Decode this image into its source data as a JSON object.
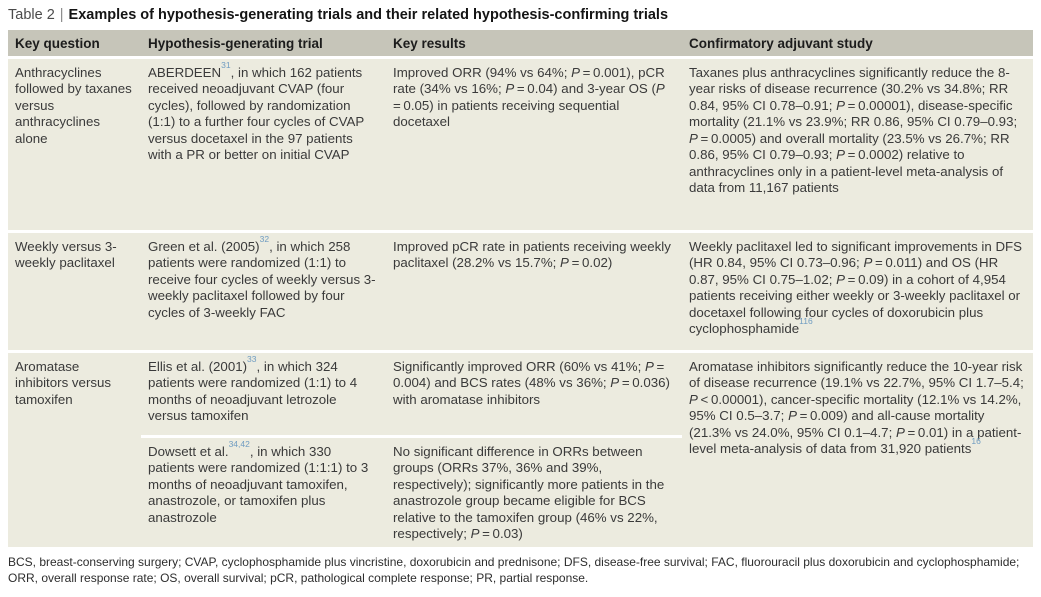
{
  "title": {
    "label": "Table 2",
    "separator": "|",
    "text": "Examples of hypothesis-generating trials and their related hypothesis-confirming trials"
  },
  "table": {
    "headers": [
      "Key question",
      "Hypothesis-generating trial",
      "Key results",
      "Confirmatory adjuvant study"
    ],
    "rows": [
      {
        "key_question": "Anthracyclines followed by taxanes versus anthracyclines alone",
        "trial": "ABERDEEN~31~, in which 162 patients received neoadjuvant CVAP (four cycles), followed by randomization (1:1) to a further four cycles of CVAP versus docetaxel in the 97 patients with a PR or better on initial CVAP",
        "key_results": "Improved ORR (94% vs 64%; *P* = 0.001), pCR rate (34% vs 16%; *P* = 0.04) and 3-year OS (*P* = 0.05) in patients receiving sequential docetaxel",
        "confirmatory": "Taxanes plus anthracyclines significantly reduce the 8-year risks of disease recurrence (30.2% vs 34.8%; RR 0.84, 95% CI 0.78–0.91; *P* = 0.00001), disease-specific mortality (21.1% vs 23.9%; RR 0.86, 95% CI 0.79–0.93; *P* = 0.0005) and overall mortality (23.5% vs 26.7%; RR 0.86, 95% CI 0.79–0.93; *P* = 0.0002) relative to anthracyclines only in a patient-level meta-analysis of data from 11,167 patients"
      },
      {
        "key_question": "Weekly versus 3-weekly paclitaxel",
        "trial": "Green et al. (2005)~32~, in which 258 patients were randomized (1:1) to receive four cycles of weekly versus 3-weekly paclitaxel followed by four cycles of 3-weekly FAC",
        "key_results": "Improved pCR rate in patients receiving weekly paclitaxel (28.2% vs 15.7%; *P* = 0.02)",
        "confirmatory": "Weekly paclitaxel led to significant improvements in DFS (HR 0.84, 95% CI 0.73–0.96; *P* = 0.011) and OS (HR 0.87, 95% CI 0.75–1.02; *P* = 0.09) in a cohort of 4,954 patients receiving either weekly or 3-weekly paclitaxel or docetaxel following four cycles of doxorubicin plus cyclophosphamide~116~"
      },
      {
        "key_question": "Aromatase inhibitors versus tamoxifen",
        "sub": [
          {
            "trial": "Ellis et al. (2001)~33~, in which 324 patients were randomized (1:1) to 4 months of neoadjuvant letrozole versus tamoxifen",
            "key_results": "Significantly improved ORR (60% vs 41%; *P* = 0.004) and BCS rates (48% vs 36%; *P* = 0.036) with aromatase inhibitors"
          },
          {
            "trial": "Dowsett et al.~34,42~, in which 330 patients were randomized (1:1:1) to 3 months of neoadjuvant tamoxifen, anastrozole, or tamoxifen plus anastrozole",
            "key_results": "No significant difference in ORRs between groups (ORRs 37%, 36% and 39%, respectively); significantly more patients in the anastrozole group became eligible for BCS relative to the tamoxifen group (46% vs 22%, respectively; *P* = 0.03)"
          }
        ],
        "confirmatory": "Aromatase inhibitors significantly reduce the 10-year risk of disease recurrence (19.1% vs 22.7%, 95% CI 1.7–5.4; *P* < 0.00001), cancer-specific mortality (12.1% vs 14.2%, 95% CI 0.5–3.7; *P* = 0.009) and all-cause mortality (21.3% vs 24.0%, 95% CI 0.1–4.7; *P* = 0.01) in a patient-level meta-analysis of data from 31,920 patients~16~"
      }
    ]
  },
  "footnote": "BCS, breast-conserving surgery; CVAP, cyclophosphamide plus vincristine, doxorubicin and prednisone; DFS, disease-free survival; FAC, fluorouracil plus doxorubicin and cyclophosphamide; ORR, overall response rate; OS, overall survival; pCR, pathological complete response; PR, partial response.",
  "colors": {
    "header_bg": "#c6c5b9",
    "row_bg": "#ecebdf",
    "page_bg": "#ffffff",
    "text": "#3a3a3a",
    "ref": "#6f9cc1"
  }
}
